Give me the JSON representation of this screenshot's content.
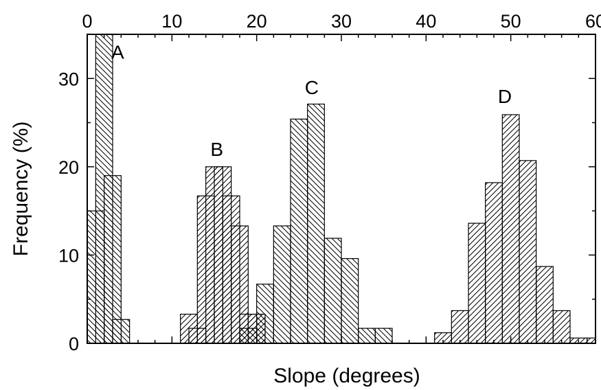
{
  "chart_data": {
    "type": "bar",
    "xlabel": "Slope (degrees)",
    "ylabel": "Frequency (%)",
    "xlim": [
      0,
      60
    ],
    "ylim": [
      0,
      35
    ],
    "x_ticks": [
      "0",
      "10",
      "20",
      "30",
      "40",
      "50",
      "60"
    ],
    "y_ticks": [
      "0",
      "10",
      "20",
      "30"
    ],
    "bin_width": 2,
    "grid": false,
    "legend": "none",
    "series": [
      {
        "name": "A",
        "hatch": "backslash",
        "bars": [
          {
            "x": 0,
            "value": 15
          },
          {
            "x": 1,
            "value": 35
          },
          {
            "x": 2,
            "value": 19
          },
          {
            "x": 3,
            "value": 2.7
          }
        ]
      },
      {
        "name": "B",
        "hatch": "slash",
        "bars": [
          {
            "x": 11,
            "value": 3.3
          },
          {
            "x": 12,
            "value": 1.7
          },
          {
            "x": 13,
            "value": 16.7
          },
          {
            "x": 14,
            "value": 20
          },
          {
            "x": 15,
            "value": 20
          },
          {
            "x": 16,
            "value": 16.7
          },
          {
            "x": 17,
            "value": 13.3
          },
          {
            "x": 18,
            "value": 3.3
          },
          {
            "x": 19,
            "value": 3.3
          }
        ]
      },
      {
        "name": "C",
        "hatch": "backslash",
        "bars": [
          {
            "x": 18,
            "value": 1.7
          },
          {
            "x": 20,
            "value": 6.7
          },
          {
            "x": 22,
            "value": 13.3
          },
          {
            "x": 24,
            "value": 25.4
          },
          {
            "x": 26,
            "value": 27.1
          },
          {
            "x": 28,
            "value": 11.9
          },
          {
            "x": 30,
            "value": 9.6
          },
          {
            "x": 32,
            "value": 1.7
          },
          {
            "x": 34,
            "value": 1.7
          }
        ]
      },
      {
        "name": "D",
        "hatch": "slash",
        "bars": [
          {
            "x": 41,
            "value": 1.2
          },
          {
            "x": 43,
            "value": 3.7
          },
          {
            "x": 45,
            "value": 13.6
          },
          {
            "x": 47,
            "value": 18.2
          },
          {
            "x": 49,
            "value": 25.9
          },
          {
            "x": 51,
            "value": 20.7
          },
          {
            "x": 53,
            "value": 8.7
          },
          {
            "x": 55,
            "value": 3.7
          },
          {
            "x": 57,
            "value": 0.6
          },
          {
            "x": 59,
            "value": 0.6
          }
        ]
      }
    ],
    "annotations": [
      {
        "text": "A",
        "x": 3.6,
        "y": 33
      },
      {
        "text": "B",
        "x": 15.3,
        "y": 22
      },
      {
        "text": "C",
        "x": 26.5,
        "y": 29
      },
      {
        "text": "D",
        "x": 49.3,
        "y": 28
      }
    ]
  }
}
